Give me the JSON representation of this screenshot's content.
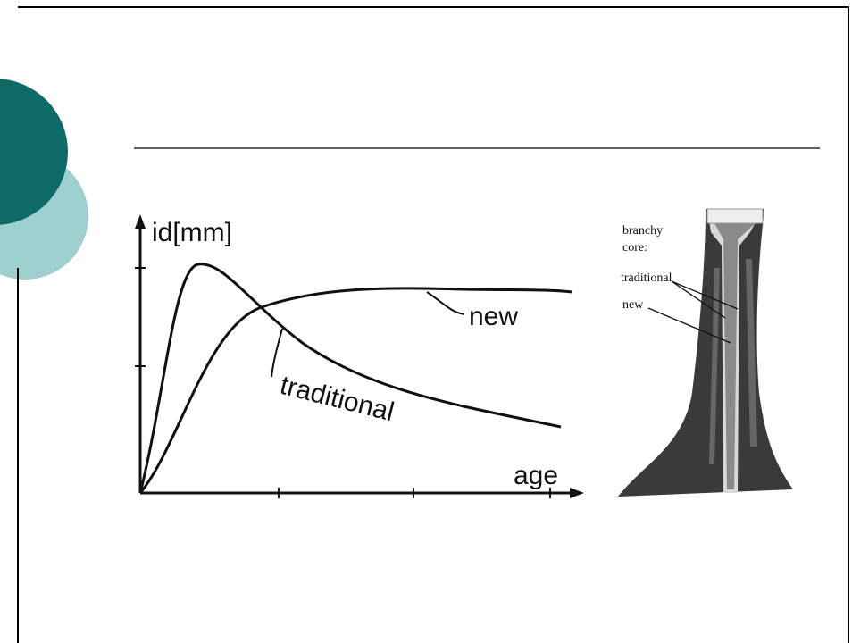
{
  "diagram": {
    "y_axis_label": "id[mm]",
    "x_axis_label": "age",
    "curve_labels": {
      "new": "new",
      "traditional": "traditional"
    }
  },
  "figure": {
    "core_label_lines": [
      "branchy",
      "core:"
    ],
    "traditional": "traditional",
    "new": "new"
  }
}
